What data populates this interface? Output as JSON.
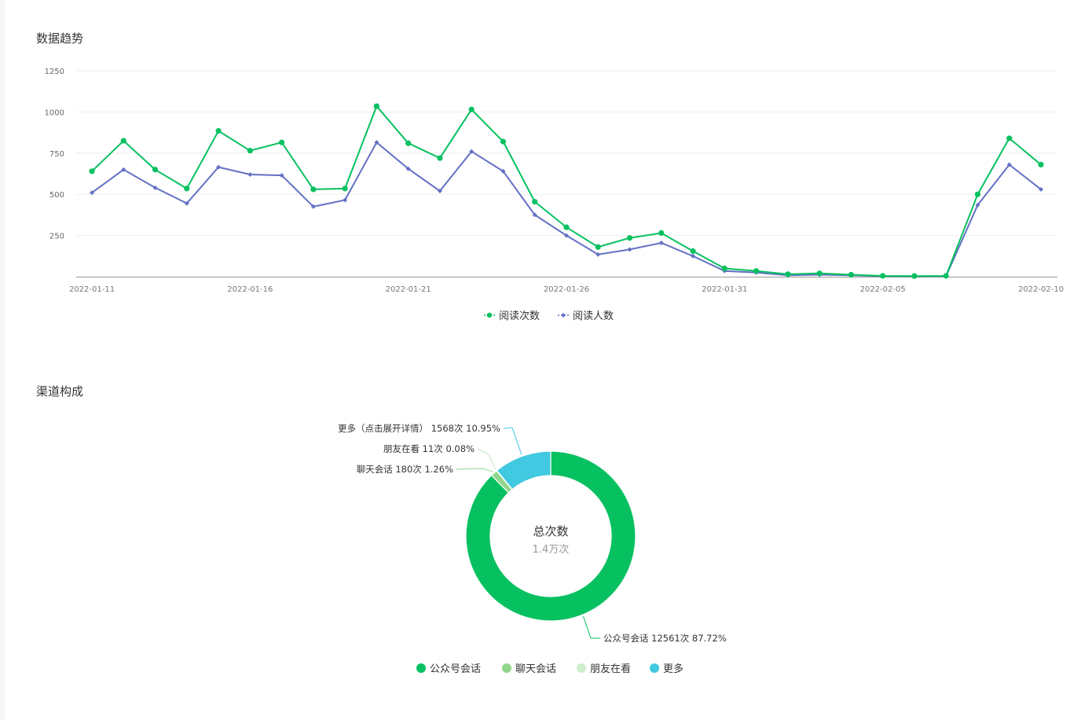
{
  "trend": {
    "title": "数据趋势",
    "chart_data": {
      "type": "line",
      "x": [
        "2022-01-11",
        "2022-01-12",
        "2022-01-13",
        "2022-01-14",
        "2022-01-15",
        "2022-01-16",
        "2022-01-17",
        "2022-01-18",
        "2022-01-19",
        "2022-01-20",
        "2022-01-21",
        "2022-01-22",
        "2022-01-23",
        "2022-01-24",
        "2022-01-25",
        "2022-01-26",
        "2022-01-27",
        "2022-01-28",
        "2022-01-29",
        "2022-01-30",
        "2022-01-31",
        "2022-02-01",
        "2022-02-02",
        "2022-02-03",
        "2022-02-04",
        "2022-02-05",
        "2022-02-06",
        "2022-02-07",
        "2022-02-08",
        "2022-02-09",
        "2022-02-10"
      ],
      "x_tick_labels": [
        "2022-01-11",
        "2022-01-16",
        "2022-01-21",
        "2022-01-26",
        "2022-01-31",
        "2022-02-05",
        "2022-02-10"
      ],
      "y_ticks": [
        250,
        500,
        750,
        1000,
        1250
      ],
      "ylim": [
        0,
        1250
      ],
      "grid": true,
      "legend_position": "bottom",
      "series": [
        {
          "name": "阅读次数",
          "color": "#07c160",
          "marker": "circle",
          "values": [
            640,
            825,
            650,
            535,
            885,
            765,
            815,
            530,
            535,
            1035,
            810,
            720,
            1015,
            820,
            455,
            300,
            180,
            235,
            265,
            155,
            50,
            35,
            15,
            20,
            12,
            5,
            4,
            5,
            500,
            840,
            680
          ]
        },
        {
          "name": "阅读人数",
          "color": "#6570c4",
          "marker": "diamond",
          "values": [
            510,
            650,
            540,
            445,
            665,
            620,
            615,
            425,
            465,
            815,
            655,
            520,
            760,
            640,
            375,
            250,
            135,
            165,
            205,
            125,
            35,
            25,
            8,
            12,
            8,
            3,
            2,
            3,
            435,
            680,
            530
          ]
        }
      ]
    }
  },
  "channel": {
    "title": "渠道构成",
    "center_title": "总次数",
    "center_value": "1.4万次",
    "chart_data": {
      "type": "pie",
      "donut": true,
      "legend_position": "bottom",
      "slices": [
        {
          "name": "公众号会话",
          "value": 12561,
          "label": "公众号会话 12561次 87.72%",
          "color": "#07c160"
        },
        {
          "name": "聊天会话",
          "value": 180,
          "label": "聊天会话 180次 1.26%",
          "color": "#91d58c"
        },
        {
          "name": "朋友在看",
          "value": 11,
          "label": "朋友在看 11次 0.08%",
          "color": "#cdeecd"
        },
        {
          "name": "更多",
          "value": 1568,
          "label": "更多（点击展开详情） 1568次 10.95%",
          "color": "#40c9e0"
        }
      ]
    }
  }
}
